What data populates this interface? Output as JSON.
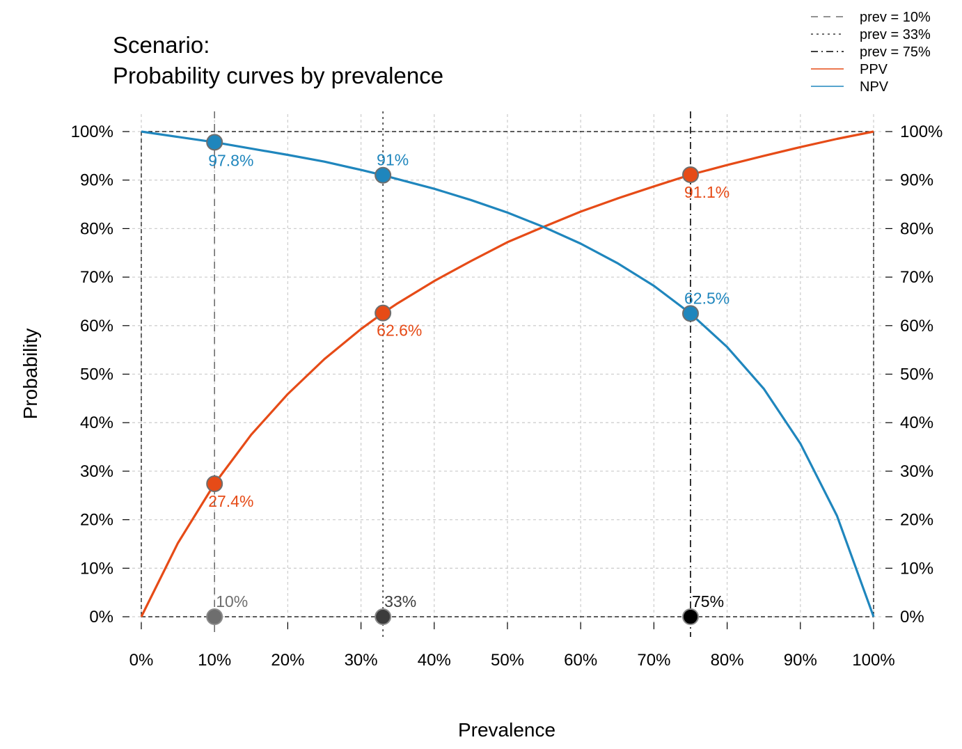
{
  "chart_data": {
    "type": "line",
    "title": "Scenario:",
    "subtitle": "Probability curves by prevalence",
    "xlabel": "Prevalence",
    "ylabel": "Probability",
    "xlim": [
      0,
      1
    ],
    "ylim": [
      0,
      1
    ],
    "x_ticks": [
      "0%",
      "10%",
      "20%",
      "30%",
      "40%",
      "50%",
      "60%",
      "70%",
      "80%",
      "90%",
      "100%"
    ],
    "y_ticks": [
      "0%",
      "10%",
      "20%",
      "30%",
      "40%",
      "50%",
      "60%",
      "70%",
      "80%",
      "90%",
      "100%"
    ],
    "grid": true,
    "legend_position": "top-right",
    "series": [
      {
        "name": "PPV",
        "color": "#E64B17",
        "x": [
          0,
          0.05,
          0.1,
          0.15,
          0.2,
          0.25,
          0.3,
          0.33,
          0.35,
          0.4,
          0.45,
          0.5,
          0.55,
          0.6,
          0.65,
          0.7,
          0.75,
          0.8,
          0.85,
          0.9,
          0.95,
          1.0
        ],
        "y": [
          0,
          0.152,
          0.274,
          0.375,
          0.459,
          0.531,
          0.593,
          0.626,
          0.646,
          0.692,
          0.733,
          0.772,
          0.804,
          0.835,
          0.862,
          0.887,
          0.911,
          0.931,
          0.95,
          0.968,
          0.985,
          1.0
        ]
      },
      {
        "name": "NPV",
        "color": "#1F86BD",
        "x": [
          0,
          0.05,
          0.1,
          0.15,
          0.2,
          0.25,
          0.3,
          0.33,
          0.35,
          0.4,
          0.45,
          0.5,
          0.55,
          0.6,
          0.65,
          0.7,
          0.75,
          0.8,
          0.85,
          0.9,
          0.95,
          1.0
        ],
        "y": [
          1.0,
          0.989,
          0.978,
          0.965,
          0.952,
          0.938,
          0.921,
          0.91,
          0.902,
          0.882,
          0.859,
          0.833,
          0.803,
          0.769,
          0.729,
          0.682,
          0.625,
          0.556,
          0.47,
          0.357,
          0.208,
          0
        ]
      }
    ],
    "prevalence_markers": [
      {
        "name": "prev = 10%",
        "x": 0.1,
        "label": "10%",
        "style": "dashed",
        "color": "#6E6E6E",
        "ppv": 0.274,
        "ppv_label": "27.4%",
        "npv": 0.978,
        "npv_label": "97.8%"
      },
      {
        "name": "prev = 33%",
        "x": 0.33,
        "label": "33%",
        "style": "dotted",
        "color": "#3C3C3C",
        "ppv": 0.626,
        "ppv_label": "62.6%",
        "npv": 0.91,
        "npv_label": "91%"
      },
      {
        "name": "prev = 75%",
        "x": 0.75,
        "label": "75%",
        "style": "dashdot",
        "color": "#000000",
        "ppv": 0.911,
        "ppv_label": "91.1%",
        "npv": 0.625,
        "npv_label": "62.5%"
      }
    ],
    "legend": [
      {
        "label": "prev = 10%",
        "style": "dashed",
        "color": "#6E6E6E"
      },
      {
        "label": "prev = 33%",
        "style": "dotted",
        "color": "#3C3C3C"
      },
      {
        "label": "prev = 75%",
        "style": "dashdot",
        "color": "#000000"
      },
      {
        "label": "PPV",
        "style": "solid",
        "color": "#E64B17"
      },
      {
        "label": "NPV",
        "style": "solid",
        "color": "#1F86BD"
      }
    ]
  }
}
